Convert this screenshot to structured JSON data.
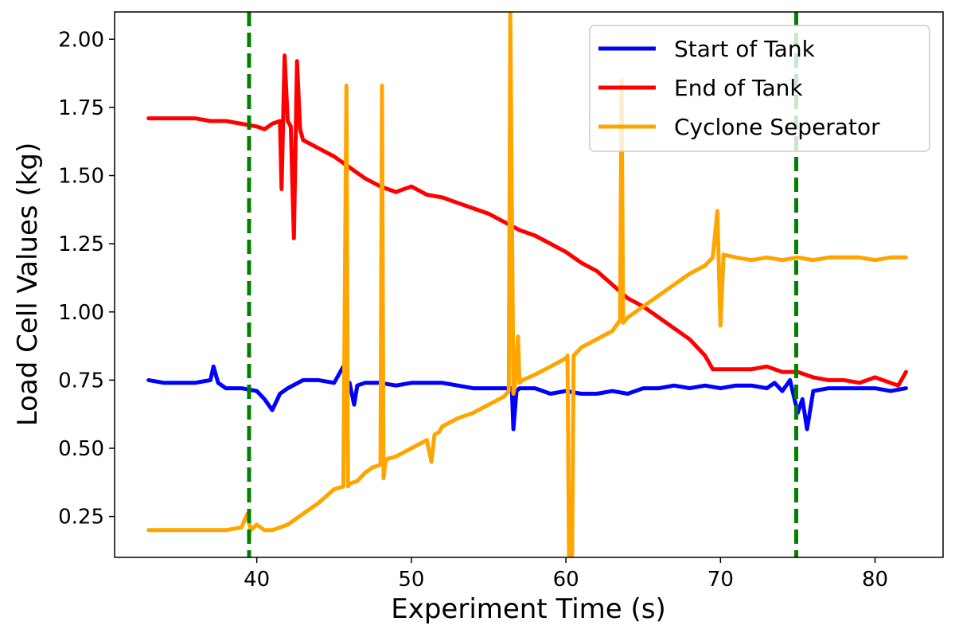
{
  "chart_data": {
    "type": "line",
    "xlabel": "Experiment Time (s)",
    "ylabel": "Load Cell Values (kg)",
    "xlim": [
      30.8,
      84.4
    ],
    "ylim": [
      0.1,
      2.1
    ],
    "xticks": [
      {
        "value": 40,
        "label": "40"
      },
      {
        "value": 50,
        "label": "50"
      },
      {
        "value": 60,
        "label": "60"
      },
      {
        "value": 70,
        "label": "70"
      },
      {
        "value": 80,
        "label": "80"
      }
    ],
    "yticks": [
      {
        "value": 0.25,
        "label": "0.25"
      },
      {
        "value": 0.5,
        "label": "0.50"
      },
      {
        "value": 0.75,
        "label": "0.75"
      },
      {
        "value": 1.0,
        "label": "1.00"
      },
      {
        "value": 1.25,
        "label": "1.25"
      },
      {
        "value": 1.5,
        "label": "1.50"
      },
      {
        "value": 1.75,
        "label": "1.75"
      },
      {
        "value": 2.0,
        "label": "2.00"
      }
    ],
    "grid": false,
    "legend_position": "top-right",
    "vlines": [
      {
        "x": 39.5,
        "color": "#008000",
        "style": "dashed"
      },
      {
        "x": 74.9,
        "color": "#008000",
        "style": "dashed"
      }
    ],
    "series": [
      {
        "name": "Start of Tank",
        "color": "#0000ff",
        "x": [
          33,
          34,
          35,
          36,
          37,
          37.2,
          37.5,
          38,
          39,
          40,
          40.5,
          41,
          41.5,
          42,
          43,
          44,
          45,
          45.6,
          45.8,
          46,
          46.3,
          46.5,
          47,
          48,
          49,
          50,
          51,
          52,
          53,
          54,
          55,
          56,
          56.5,
          56.6,
          56.8,
          57,
          58,
          59,
          60,
          61,
          62,
          63,
          64,
          65,
          66,
          67,
          68,
          69,
          70,
          71,
          72,
          73,
          73.5,
          74,
          74.5,
          75,
          75.3,
          75.6,
          76,
          77,
          78,
          79,
          80,
          81,
          82
        ],
        "y": [
          0.75,
          0.74,
          0.74,
          0.74,
          0.75,
          0.8,
          0.74,
          0.72,
          0.72,
          0.71,
          0.68,
          0.64,
          0.7,
          0.72,
          0.75,
          0.75,
          0.74,
          0.8,
          0.73,
          0.74,
          0.66,
          0.73,
          0.74,
          0.74,
          0.73,
          0.74,
          0.74,
          0.74,
          0.73,
          0.72,
          0.72,
          0.72,
          0.72,
          0.57,
          0.71,
          0.72,
          0.72,
          0.7,
          0.71,
          0.7,
          0.7,
          0.71,
          0.7,
          0.72,
          0.72,
          0.73,
          0.72,
          0.73,
          0.72,
          0.73,
          0.73,
          0.72,
          0.74,
          0.71,
          0.75,
          0.63,
          0.68,
          0.57,
          0.71,
          0.72,
          0.72,
          0.72,
          0.72,
          0.71,
          0.72
        ]
      },
      {
        "name": "End of Tank",
        "color": "#ff0000",
        "x": [
          33,
          34,
          35,
          36,
          37,
          38,
          39,
          40,
          40.5,
          41,
          41.5,
          41.6,
          41.8,
          42,
          42.2,
          42.4,
          42.6,
          42.8,
          43,
          44,
          45,
          46,
          47,
          48,
          49,
          50,
          51,
          52,
          53,
          54,
          55,
          56,
          57,
          58,
          59,
          60,
          61,
          62,
          63,
          64,
          65,
          66,
          67,
          68,
          69,
          69.5,
          70,
          71,
          72,
          73,
          74,
          75,
          76,
          77,
          78,
          79,
          80,
          81,
          81.5,
          82
        ],
        "y": [
          1.71,
          1.71,
          1.71,
          1.71,
          1.7,
          1.7,
          1.69,
          1.68,
          1.67,
          1.69,
          1.7,
          1.45,
          1.94,
          1.7,
          1.68,
          1.27,
          1.92,
          1.67,
          1.63,
          1.6,
          1.57,
          1.53,
          1.49,
          1.46,
          1.44,
          1.46,
          1.43,
          1.42,
          1.4,
          1.38,
          1.36,
          1.33,
          1.3,
          1.28,
          1.25,
          1.22,
          1.18,
          1.15,
          1.1,
          1.05,
          1.02,
          0.98,
          0.94,
          0.9,
          0.84,
          0.79,
          0.79,
          0.79,
          0.79,
          0.8,
          0.78,
          0.78,
          0.76,
          0.75,
          0.75,
          0.74,
          0.76,
          0.74,
          0.73,
          0.78
        ]
      },
      {
        "name": "Cyclone Seperator",
        "color": "#ffa500",
        "x": [
          33,
          34,
          35,
          36,
          37,
          38,
          39,
          39.4,
          39.6,
          40,
          40.5,
          41,
          42,
          43,
          44,
          45,
          45.6,
          45.8,
          45.9,
          46,
          46.5,
          47,
          47.5,
          48,
          48.1,
          48.2,
          48.3,
          48.4,
          49,
          50,
          51,
          51.3,
          51.5,
          51.8,
          52,
          53,
          54,
          55,
          56,
          56.3,
          56.4,
          56.6,
          56.7,
          56.9,
          57,
          57.2,
          58,
          59,
          60,
          60.1,
          60.2,
          60.4,
          60.5,
          61,
          62,
          63,
          63.5,
          63.6,
          63.7,
          64,
          65,
          66,
          67,
          68,
          69,
          69.5,
          69.8,
          70,
          70.2,
          71,
          72,
          73,
          74,
          75,
          76,
          77,
          78,
          79,
          80,
          81,
          82
        ],
        "y": [
          0.2,
          0.2,
          0.2,
          0.2,
          0.2,
          0.2,
          0.21,
          0.26,
          0.2,
          0.22,
          0.2,
          0.2,
          0.22,
          0.26,
          0.3,
          0.35,
          0.36,
          1.83,
          0.36,
          0.37,
          0.38,
          0.41,
          0.43,
          0.44,
          1.83,
          0.39,
          0.44,
          0.46,
          0.47,
          0.5,
          0.53,
          0.45,
          0.55,
          0.56,
          0.58,
          0.61,
          0.63,
          0.66,
          0.69,
          0.71,
          2.1,
          0.7,
          0.73,
          0.91,
          0.74,
          0.75,
          0.77,
          0.8,
          0.83,
          0.84,
          0.1,
          0.1,
          0.84,
          0.87,
          0.9,
          0.93,
          0.97,
          1.85,
          0.96,
          0.98,
          1.02,
          1.06,
          1.1,
          1.14,
          1.17,
          1.2,
          1.37,
          0.95,
          1.21,
          1.2,
          1.19,
          1.2,
          1.19,
          1.2,
          1.19,
          1.2,
          1.2,
          1.2,
          1.19,
          1.2,
          1.2
        ]
      }
    ]
  }
}
